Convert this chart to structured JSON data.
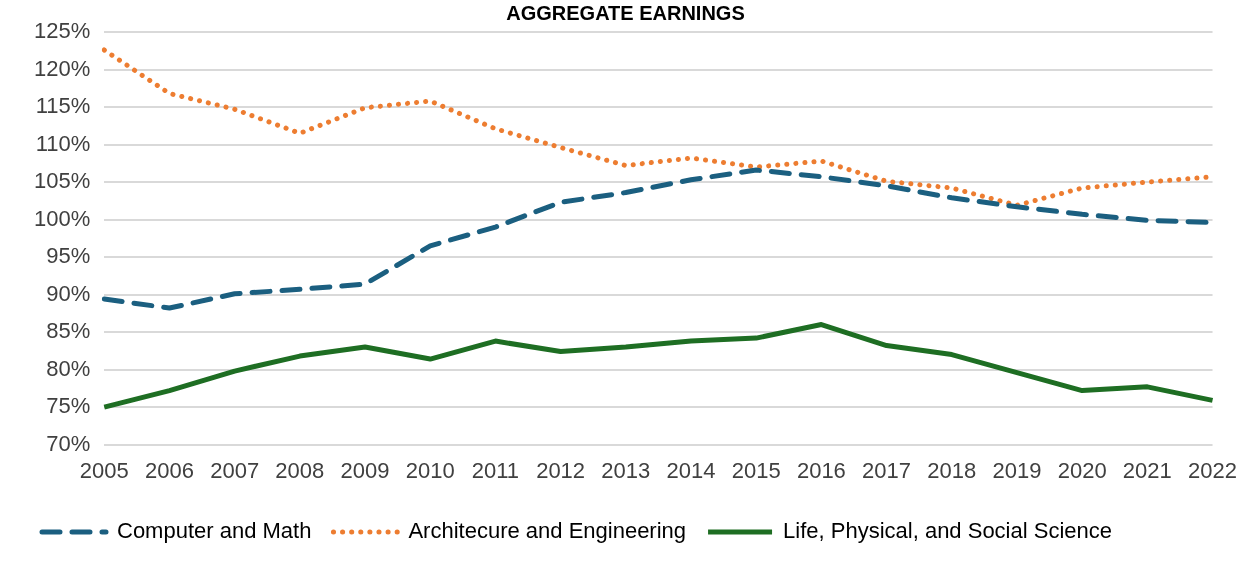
{
  "chart_data": {
    "type": "line",
    "title": "AGGREGATE EARNINGS",
    "categories": [
      "2005",
      "2006",
      "2007",
      "2008",
      "2009",
      "2010",
      "2011",
      "2012",
      "2013",
      "2014",
      "2015",
      "2016",
      "2017",
      "2018",
      "2019",
      "2020",
      "2021",
      "2022"
    ],
    "series": [
      {
        "name": "Computer and Math",
        "color": "#1b5f80",
        "line_style": "dashed",
        "values": [
          89.4,
          88.2,
          90.1,
          90.7,
          91.4,
          96.5,
          99.0,
          102.3,
          103.6,
          105.3,
          106.6,
          105.7,
          104.5,
          102.9,
          101.7,
          100.7,
          99.9,
          99.6
        ]
      },
      {
        "name": "Architecure and Engineering",
        "color": "#ed7d31",
        "line_style": "dotted",
        "values": [
          122.6,
          116.8,
          114.7,
          111.5,
          114.9,
          115.8,
          112.1,
          109.6,
          107.2,
          108.2,
          107.0,
          107.8,
          105.1,
          104.2,
          101.9,
          104.2,
          105.0,
          105.7
        ]
      },
      {
        "name": "Life, Physical, and Social Science",
        "color": "#1e6e23",
        "line_style": "solid",
        "values": [
          75.0,
          77.2,
          79.8,
          81.8,
          83.0,
          81.4,
          83.8,
          82.4,
          83.0,
          83.8,
          84.2,
          86.0,
          83.2,
          82.0,
          79.6,
          77.2,
          77.7,
          75.9
        ]
      }
    ],
    "ylim": [
      70,
      125
    ],
    "yticks": [
      {
        "value": 70,
        "label": "70%"
      },
      {
        "value": 75,
        "label": "75%"
      },
      {
        "value": 80,
        "label": "80%"
      },
      {
        "value": 85,
        "label": "85%"
      },
      {
        "value": 90,
        "label": "90%"
      },
      {
        "value": 95,
        "label": "95%"
      },
      {
        "value": 100,
        "label": "100%"
      },
      {
        "value": 105,
        "label": "105%"
      },
      {
        "value": 110,
        "label": "110%"
      },
      {
        "value": 115,
        "label": "115%"
      },
      {
        "value": 120,
        "label": "120%"
      },
      {
        "value": 125,
        "label": "125%"
      }
    ],
    "grid": "y",
    "legend": "bottom",
    "marker": "none"
  }
}
